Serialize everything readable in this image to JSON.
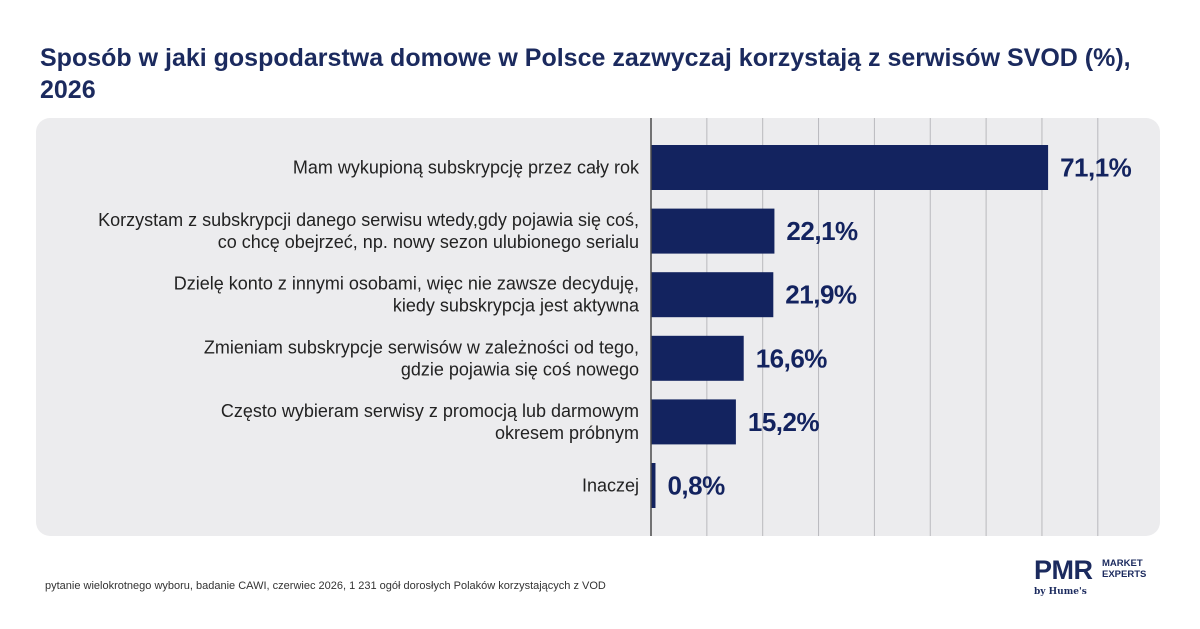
{
  "title": "Sposób w jaki gospodarstwa domowe w Polsce zazwyczaj korzystają z serwisów SVOD (%), 2026",
  "footnote": "pytanie wielokrotnego wyboru, badanie CAWI, czerwiec 2026, 1 231 ogół dorosłych Polaków korzystających z VOD",
  "logo": {
    "wordmark": "PMR",
    "tagline_line1": "MARKET",
    "tagline_line2": "EXPERTS",
    "byline": "by Hume's"
  },
  "colors": {
    "bar": "#13235f",
    "panel": "#ececee",
    "grid": "#b9b9bd",
    "axis": "#4a4a4a",
    "title": "#1b2a5e"
  },
  "chart_data": {
    "type": "bar",
    "orientation": "horizontal",
    "unit": "%",
    "xlim": [
      0,
      80
    ],
    "grid": true,
    "categories": [
      [
        "Mam wykupioną subskrypcję przez cały rok"
      ],
      [
        "Korzystam z subskrypcji danego serwisu wtedy,gdy pojawia się coś,",
        "co chcę obejrzeć, np. nowy sezon ulubionego serialu"
      ],
      [
        "Dzielę konto z innymi osobami, więc nie zawsze decyduję,",
        "kiedy subskrypcja jest aktywna"
      ],
      [
        "Zmieniam subskrypcje serwisów w zależności od tego,",
        "gdzie pojawia się coś nowego"
      ],
      [
        "Często wybieram serwisy z promocją lub darmowym",
        "okresem próbnym"
      ],
      [
        "Inaczej"
      ]
    ],
    "values": [
      71.1,
      22.1,
      21.9,
      16.6,
      15.2,
      0.8
    ],
    "value_labels": [
      "71,1%",
      "22,1%",
      "21,9%",
      "16,6%",
      "15,2%",
      "0,8%"
    ]
  }
}
